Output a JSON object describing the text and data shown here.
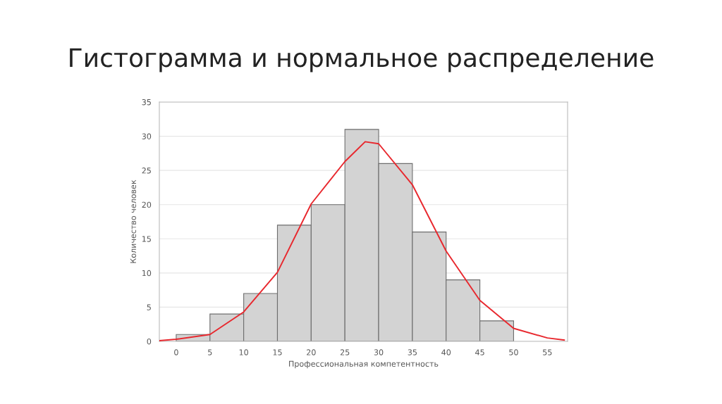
{
  "chart_data": {
    "type": "histogram",
    "title": "Гистограмма и нормальное распределение",
    "xlabel": "Профессиональная компетентность",
    "ylabel": "Количество человек",
    "bins": [
      0,
      5,
      10,
      15,
      20,
      25,
      30,
      35,
      40,
      45,
      50
    ],
    "values": [
      1,
      4,
      7,
      17,
      20,
      31,
      26,
      16,
      9,
      3
    ],
    "color": "#d3d3d3",
    "series": [
      {
        "type": "line",
        "color": "#e8282e",
        "x": [
          -2.5,
          0,
          5,
          10,
          15,
          20,
          25,
          28,
          30,
          35,
          40,
          45,
          50,
          55,
          57.5
        ],
        "values": [
          0.1,
          0.3,
          1.0,
          4.3,
          10.1,
          20.1,
          26.3,
          29.2,
          28.9,
          22.9,
          13.2,
          6.0,
          1.9,
          0.5,
          0.2
        ]
      }
    ],
    "xlim": [
      -2.5,
      58
    ],
    "xticks": [
      0,
      5,
      10,
      15,
      20,
      25,
      30,
      35,
      40,
      45,
      50,
      55
    ],
    "ylim": [
      0,
      35
    ],
    "yticks": [
      0,
      5,
      10,
      15,
      20,
      25,
      30,
      35
    ],
    "grid": "y"
  }
}
